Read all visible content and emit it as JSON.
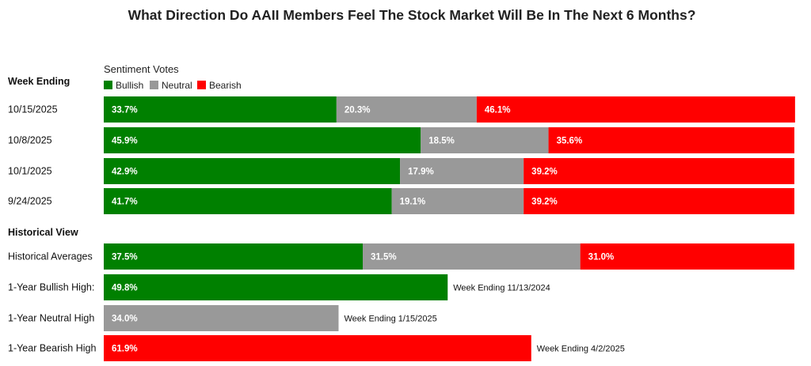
{
  "chart_data": {
    "type": "bar",
    "orientation": "horizontal",
    "stacked": true,
    "title": "What Direction Do AAII Members Feel The Stock Market Will Be In The Next 6 Months?",
    "legend_title": "Sentiment Votes",
    "legend": [
      "Bullish",
      "Neutral",
      "Bearish"
    ],
    "colors": {
      "Bullish": "#008000",
      "Neutral": "#999999",
      "Bearish": "#ff0000"
    },
    "xlim": [
      0,
      100
    ],
    "weekly_header": "Week Ending",
    "weekly": [
      {
        "label": "10/15/2025",
        "values": [
          33.7,
          20.3,
          46.1
        ]
      },
      {
        "label": "10/8/2025",
        "values": [
          45.9,
          18.5,
          35.6
        ]
      },
      {
        "label": "10/1/2025",
        "values": [
          42.9,
          17.9,
          39.2
        ]
      },
      {
        "label": "9/24/2025",
        "values": [
          41.7,
          19.1,
          39.2
        ]
      }
    ],
    "historical_header": "Historical View",
    "historical_averages": {
      "label": "Historical Averages",
      "values": [
        37.5,
        31.5,
        31.0
      ]
    },
    "highs": [
      {
        "label": "1-Year Bullish High:",
        "series": "Bullish",
        "value": 49.8,
        "note": "Week Ending 11/13/2024"
      },
      {
        "label": "1-Year Neutral High",
        "series": "Neutral",
        "value": 34.0,
        "note": "Week Ending 1/15/2025"
      },
      {
        "label": "1-Year Bearish High",
        "series": "Bearish",
        "value": 61.9,
        "note": "Week Ending 4/2/2025"
      }
    ]
  }
}
